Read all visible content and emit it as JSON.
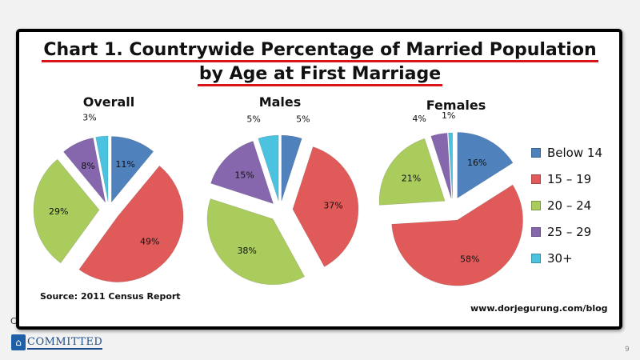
{
  "chart_title_line1": "Chart 1. Countrywide Percentage of Married Population",
  "chart_title_line2": "by Age at First Marriage",
  "source": "Source: 2011 Census Report",
  "website": "www.dorjegurung.com/blog",
  "footer": {
    "logo_text": "COMMITTED",
    "left_letter": "C",
    "page_number": "9"
  },
  "legend": [
    {
      "label": "Below 14",
      "color": "#4f81bd"
    },
    {
      "label": "15 – 19",
      "color": "#e05a5a"
    },
    {
      "label": "20 – 24",
      "color": "#a9cc5c"
    },
    {
      "label": "25 – 29",
      "color": "#8667ad"
    },
    {
      "label": "30+",
      "color": "#4bc3e0"
    }
  ],
  "chart_data": {
    "type": "pie",
    "title": "Chart 1. Countrywide Percentage of Married Population by Age at First Marriage",
    "categories": [
      "Below 14",
      "15 – 19",
      "20 – 24",
      "25 – 29",
      "30+"
    ],
    "colors": [
      "#4f81bd",
      "#e05a5a",
      "#a9cc5c",
      "#8667ad",
      "#4bc3e0"
    ],
    "legend_position": "right",
    "pies": [
      {
        "name": "Overall",
        "values": [
          11,
          49,
          29,
          8,
          3
        ],
        "labels": [
          "11%",
          "49%",
          "29%",
          "8%",
          "3%"
        ]
      },
      {
        "name": "Males",
        "values": [
          5,
          37,
          38,
          15,
          5
        ],
        "labels": [
          "5%",
          "37%",
          "38%",
          "15%",
          "5%"
        ]
      },
      {
        "name": "Females",
        "values": [
          16,
          58,
          21,
          4,
          1
        ],
        "labels": [
          "16%",
          "58%",
          "21%",
          "4%",
          "1%"
        ]
      }
    ]
  }
}
